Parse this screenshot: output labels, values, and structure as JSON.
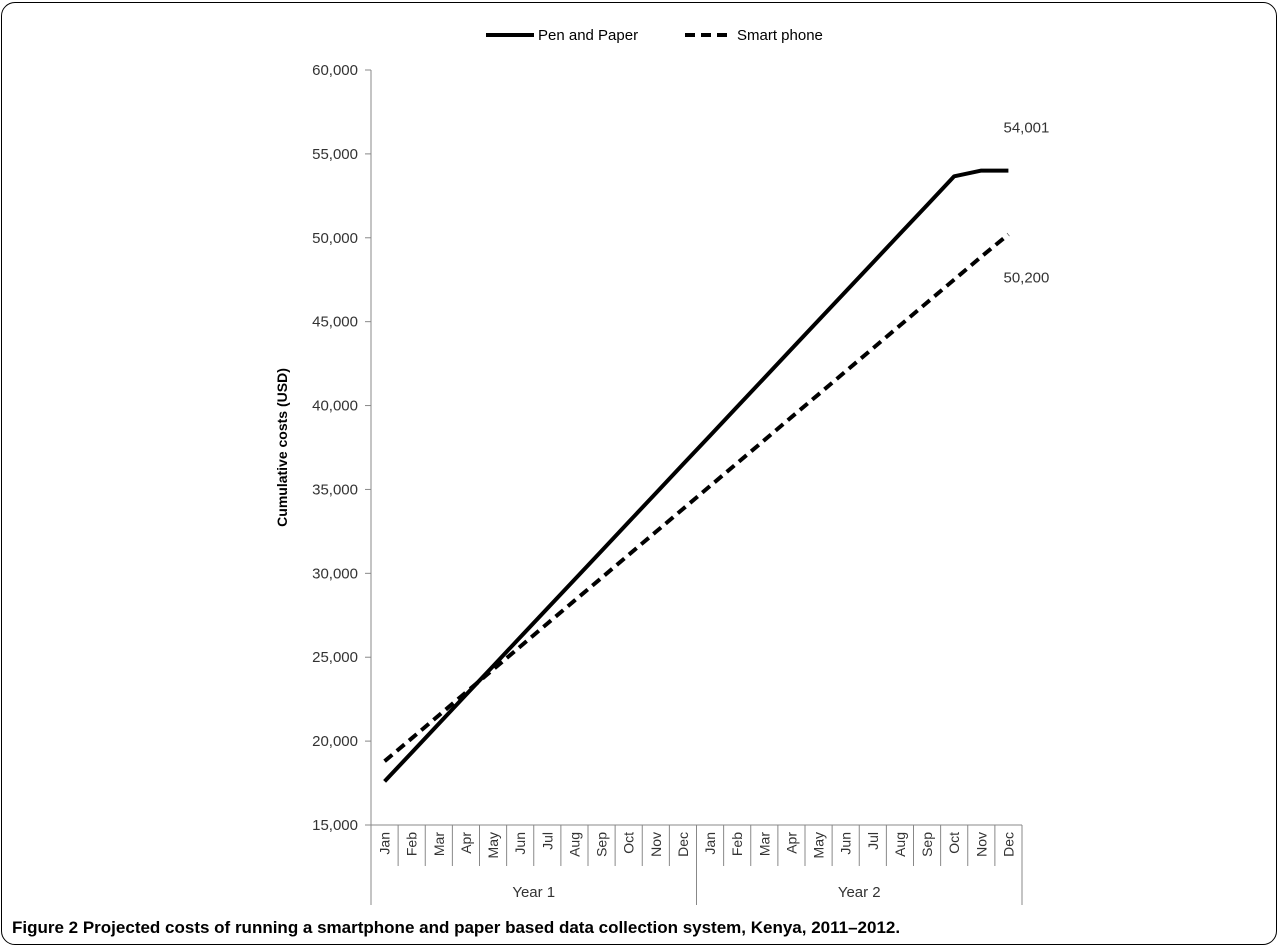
{
  "chart_data": {
    "type": "line",
    "ylabel": "Cumulative costs (USD)",
    "ylim": [
      15000,
      60000
    ],
    "yticks": [
      "15,000",
      "20,000",
      "25,000",
      "30,000",
      "35,000",
      "40,000",
      "45,000",
      "50,000",
      "55,000",
      "60,000"
    ],
    "ytick_values": [
      15000,
      20000,
      25000,
      30000,
      35000,
      40000,
      45000,
      50000,
      55000,
      60000
    ],
    "categories": [
      "Jan",
      "Feb",
      "Mar",
      "Apr",
      "May",
      "Jun",
      "Jul",
      "Aug",
      "Sep",
      "Oct",
      "Nov",
      "Dec",
      "Jan",
      "Feb",
      "Mar",
      "Apr",
      "May",
      "Jun",
      "Jul",
      "Aug",
      "Sep",
      "Oct",
      "Nov",
      "Dec"
    ],
    "groups": [
      {
        "label": "Year 1",
        "span": 12
      },
      {
        "label": "Year 2",
        "span": 12
      }
    ],
    "legend_position": "top-center",
    "grid": false,
    "series": [
      {
        "name": "Pen and Paper",
        "style": "solid",
        "color": "#000000",
        "values": [
          17600,
          19317,
          21035,
          22752,
          24470,
          26187,
          27905,
          29622,
          31340,
          33057,
          34775,
          36492,
          38210,
          39927,
          41645,
          43362,
          45080,
          46797,
          48515,
          50232,
          51950,
          53667,
          54001,
          54001
        ]
      },
      {
        "name": "Smart phone",
        "style": "dashed",
        "color": "#000000",
        "values": [
          18800,
          20167,
          21534,
          22901,
          24268,
          25635,
          27002,
          28369,
          29736,
          31103,
          32470,
          33837,
          35204,
          36571,
          37938,
          39305,
          40672,
          42039,
          43406,
          44773,
          46140,
          47507,
          48874,
          50200
        ]
      }
    ],
    "annotations": [
      {
        "text": "54,001",
        "series": 0
      },
      {
        "text": "50,200",
        "series": 1
      }
    ]
  },
  "caption": {
    "label": "Figure 2",
    "text": " Projected costs of running a smartphone and paper based data collection system, Kenya, 2011–2012."
  }
}
